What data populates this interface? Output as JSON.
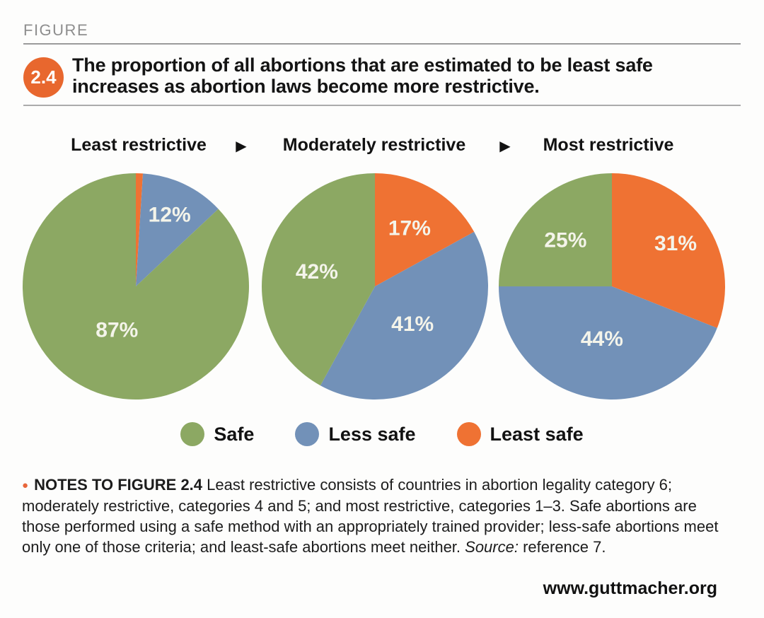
{
  "page": {
    "background": "#fdfdfc"
  },
  "figure": {
    "kicker": "FIGURE",
    "badge": "2.4",
    "title_line1": "The proportion of all abortions that are estimated to be least safe",
    "title_line2": "increases as abortion laws become more restrictive."
  },
  "header_row": {
    "separator": "▶"
  },
  "colors": {
    "safe_green": "#8CA863",
    "less_safe_blue": "#7291B8",
    "least_safe_orange": "#EF7233",
    "badge_orange": "#E8672E",
    "note_bullet_orange": "#E8663B",
    "pie_label": "#F4F4EA"
  },
  "chart_data": {
    "type": "pie",
    "unit": "percent",
    "slice_order": "clockwise from 12 o'clock: Least safe, Less safe, Safe",
    "legend_position": "bottom center",
    "categories": [
      "Least restrictive",
      "Moderately restrictive",
      "Most restrictive"
    ],
    "series": [
      {
        "name": "Safe",
        "values": [
          87,
          42,
          25
        ],
        "color": "#8CA863"
      },
      {
        "name": "Less safe",
        "values": [
          12,
          41,
          44
        ],
        "color": "#7291B8"
      },
      {
        "name": "Least safe",
        "values": [
          1,
          17,
          31
        ],
        "color": "#EF7233"
      }
    ],
    "charts": [
      {
        "heading": "Least restrictive",
        "slices": [
          {
            "label": "Least safe",
            "pct": 1,
            "color": "#EF7233",
            "show_label": false,
            "label_r": 0.6
          },
          {
            "label": "Less safe",
            "pct": 12,
            "color": "#7291B8",
            "show_label": true,
            "label_r": 0.7
          },
          {
            "label": "Safe",
            "pct": 87,
            "color": "#8CA863",
            "show_label": true,
            "label_r": 0.42
          }
        ]
      },
      {
        "heading": "Moderately restrictive",
        "slices": [
          {
            "label": "Least safe",
            "pct": 17,
            "color": "#EF7233",
            "show_label": true,
            "label_r": 0.6
          },
          {
            "label": "Less safe",
            "pct": 41,
            "color": "#7291B8",
            "show_label": true,
            "label_r": 0.47
          },
          {
            "label": "Safe",
            "pct": 42,
            "color": "#8CA863",
            "show_label": true,
            "label_r": 0.53
          }
        ]
      },
      {
        "heading": "Most restrictive",
        "slices": [
          {
            "label": "Least safe",
            "pct": 31,
            "color": "#EF7233",
            "show_label": true,
            "label_r": 0.68
          },
          {
            "label": "Less safe",
            "pct": 44,
            "color": "#7291B8",
            "show_label": true,
            "label_r": 0.47
          },
          {
            "label": "Safe",
            "pct": 25,
            "color": "#8CA863",
            "show_label": true,
            "label_r": 0.58
          }
        ]
      }
    ]
  },
  "legend": {
    "items": [
      {
        "label": "Safe",
        "color": "#8CA863"
      },
      {
        "label": "Less safe",
        "color": "#7291B8"
      },
      {
        "label": "Least safe",
        "color": "#EF7233"
      }
    ]
  },
  "notes": {
    "bullet": "●",
    "heading": "NOTES TO FIGURE 2.4",
    "body": " Least restrictive consists of countries in abortion legality category 6; moderately restrictive, categories 4 and 5; and most restrictive, categories 1–3. Safe abortions are those performed using a safe method with an appropriately trained provider; less-safe abortions meet only one of those criteria; and least-safe abortions meet neither. ",
    "source_label": "Source:",
    "source_text": " reference 7."
  },
  "footer": {
    "site_url": "www.guttmacher.org"
  }
}
